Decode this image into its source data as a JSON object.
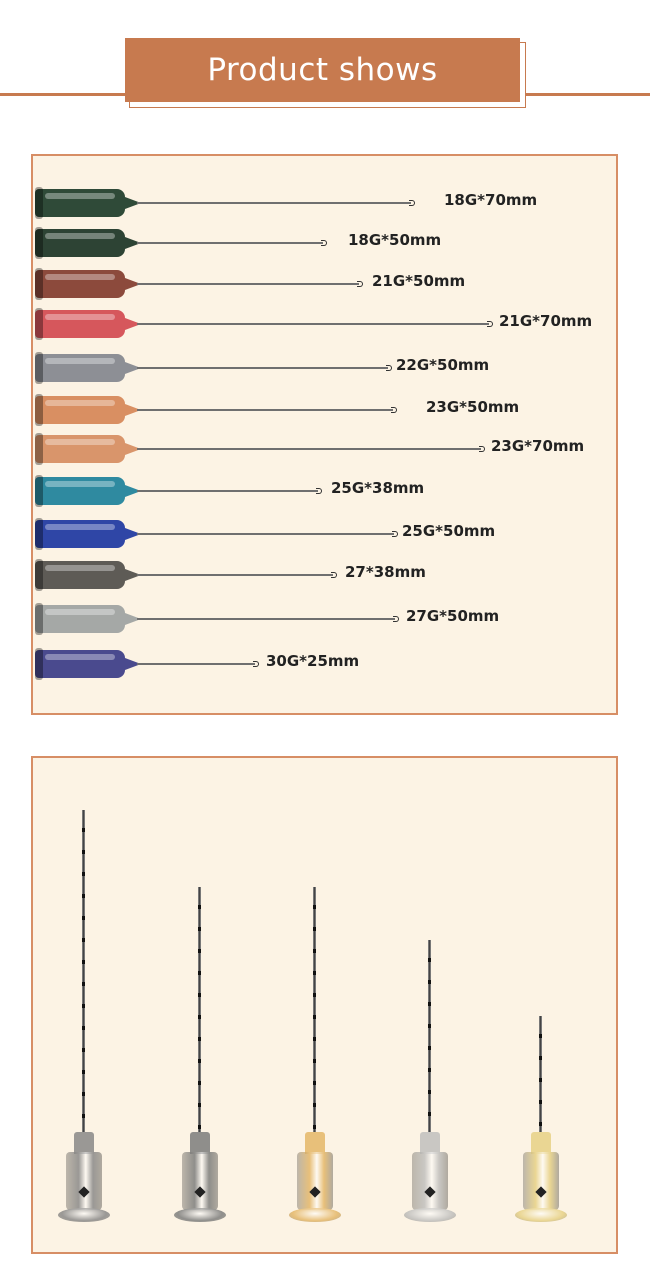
{
  "title": "Product shows",
  "colors": {
    "accent": "#c77a4f",
    "panel_bg": "#fcf3e4",
    "panel_border": "#d78e65"
  },
  "needles": [
    {
      "label": "18G*70mm",
      "hub_color": "#2f4a38"
    },
    {
      "label": "18G*50mm",
      "hub_color": "#2d4334"
    },
    {
      "label": "21G*50mm",
      "hub_color": "#8c4a3c"
    },
    {
      "label": "21G*70mm",
      "hub_color": "#d6575c"
    },
    {
      "label": "22G*50mm",
      "hub_color": "#8d8f95"
    },
    {
      "label": "23G*50mm",
      "hub_color": "#d98f62"
    },
    {
      "label": "23G*70mm",
      "hub_color": "#d9956b"
    },
    {
      "label": "25G*38mm",
      "hub_color": "#2f8aa0"
    },
    {
      "label": "25G*50mm",
      "hub_color": "#2f46a6"
    },
    {
      "label": "27*38mm",
      "hub_color": "#5e5b56"
    },
    {
      "label": "27G*50mm",
      "hub_color": "#a5a8a6"
    },
    {
      "label": "30G*25mm",
      "hub_color": "#4a4a8e"
    }
  ],
  "upright_needles": [
    {
      "hub_color": "#9a9895"
    },
    {
      "hub_color": "#8f8e8b"
    },
    {
      "hub_color": "#e8c07a"
    },
    {
      "hub_color": "#c9c7c3"
    },
    {
      "hub_color": "#ead693"
    }
  ]
}
